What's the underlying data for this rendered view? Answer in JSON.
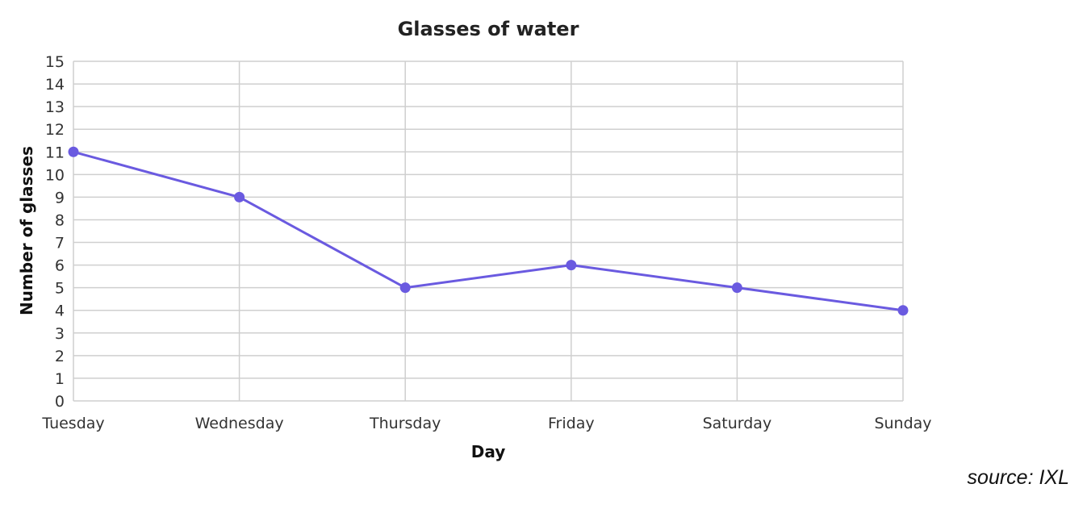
{
  "colors": {
    "series": "#6a5ae0",
    "grid": "#cfcfcf",
    "axis": "#cfcfcf",
    "background": "#ffffff"
  },
  "source_note": "source: IXL",
  "chart_data": {
    "type": "line",
    "title": "Glasses of water",
    "xlabel": "Day",
    "ylabel": "Number of glasses",
    "categories": [
      "Tuesday",
      "Wednesday",
      "Thursday",
      "Friday",
      "Saturday",
      "Sunday"
    ],
    "values": [
      11,
      9,
      5,
      6,
      5,
      4
    ],
    "ylim": [
      0,
      15
    ],
    "yticks": [
      0,
      1,
      2,
      3,
      4,
      5,
      6,
      7,
      8,
      9,
      10,
      11,
      12,
      13,
      14,
      15
    ],
    "grid": true,
    "markers": true
  }
}
